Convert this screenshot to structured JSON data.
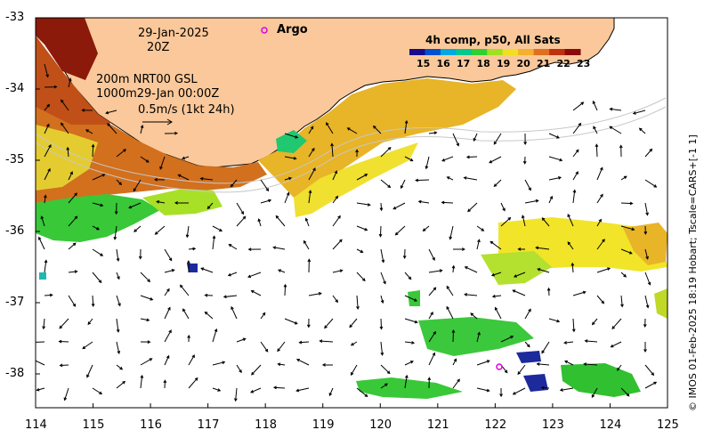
{
  "annotations": {
    "date": "29-Jan-2025",
    "time": "20Z",
    "depth_line1": "200m  NRT00 GSL",
    "depth_line2": "1000m29-Jan 00:00Z",
    "scale_label": "0.5m/s (1kt 24h)",
    "argo_label": "Argo"
  },
  "colorbar": {
    "title": "4h comp, p50, All Sats",
    "ticks": [
      "15",
      "16",
      "17",
      "18",
      "19",
      "20",
      "21",
      "22",
      "23"
    ],
    "colors": [
      "#1a0a8c",
      "#0050d0",
      "#00a8e0",
      "#00c890",
      "#30d030",
      "#a0e020",
      "#f0e020",
      "#f5b030",
      "#e07020",
      "#c03010",
      "#8b0a0a"
    ]
  },
  "axes": {
    "x_ticks": [
      "114",
      "115",
      "116",
      "117",
      "118",
      "119",
      "120",
      "121",
      "122",
      "123",
      "124",
      "125"
    ],
    "y_ticks": [
      "-33",
      "-34",
      "-35",
      "-36",
      "-37",
      "-38"
    ]
  },
  "side_caption": "© IMOS 01-Feb-2025 18:19 Hobart; Tscale=CARS+[-1 1]",
  "style": {
    "land_color": "#fac89a",
    "arrow_color": "#000000",
    "argo_color": "#e000e0"
  }
}
